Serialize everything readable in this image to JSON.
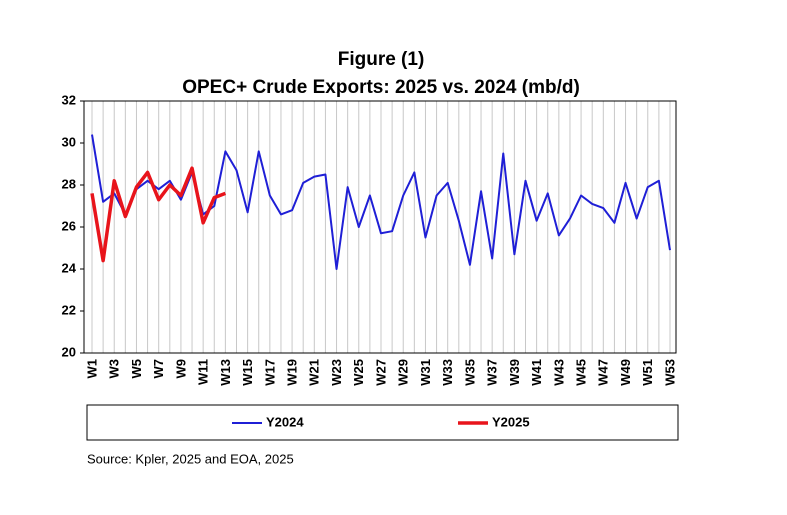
{
  "chart_data": {
    "type": "line",
    "title": "Figure (1)",
    "subtitle": "OPEC+ Crude Exports: 2025 vs. 2024 (mb/d)",
    "source": "Source: Kpler, 2025 and EOA, 2025",
    "categories": [
      "W1",
      null,
      "W3",
      null,
      "W5",
      null,
      "W7",
      null,
      "W9",
      null,
      "W11",
      null,
      "W13",
      null,
      "W15",
      null,
      "W17",
      null,
      "W19",
      null,
      "W21",
      null,
      "W23",
      null,
      "W25",
      null,
      "W27",
      null,
      "W29",
      null,
      "W31",
      null,
      "W33",
      null,
      "W35",
      null,
      "W37",
      null,
      "W39",
      null,
      "W41",
      null,
      "W43",
      null,
      "W45",
      null,
      "W47",
      null,
      "W49",
      null,
      "W51",
      null,
      "W53"
    ],
    "series": [
      {
        "name": "Y2024",
        "color": "#1f1fd6",
        "values": [
          30.4,
          27.2,
          27.6,
          26.6,
          27.8,
          28.2,
          27.8,
          28.2,
          27.3,
          28.6,
          26.6,
          27.0,
          29.6,
          28.7,
          26.7,
          29.6,
          27.5,
          26.6,
          26.8,
          28.1,
          28.4,
          28.5,
          24.0,
          27.9,
          26.0,
          27.5,
          25.7,
          25.8,
          27.5,
          28.6,
          25.5,
          27.5,
          28.1,
          26.3,
          24.2,
          27.7,
          24.5,
          29.5,
          24.7,
          28.2,
          26.3,
          27.6,
          25.6,
          26.4,
          27.5,
          27.1,
          26.9,
          26.2,
          28.1,
          26.4,
          27.9,
          28.2,
          24.9
        ]
      },
      {
        "name": "Y2025",
        "color": "#e8141b",
        "values": [
          27.6,
          24.4,
          28.2,
          26.5,
          27.9,
          28.6,
          27.3,
          28.0,
          27.5,
          28.8,
          26.2,
          27.4,
          27.6,
          null,
          null,
          null,
          null,
          null,
          null,
          null,
          null,
          null,
          null,
          null,
          null,
          null,
          null,
          null,
          null,
          null,
          null,
          null,
          null,
          null,
          null,
          null,
          null,
          null,
          null,
          null,
          null,
          null,
          null,
          null,
          null,
          null,
          null,
          null,
          null,
          null,
          null,
          null,
          null
        ]
      }
    ],
    "ylim": [
      20,
      32
    ],
    "yticks": [
      20,
      22,
      24,
      26,
      28,
      30,
      32
    ],
    "grid": "vertical",
    "legend": "bottom"
  }
}
